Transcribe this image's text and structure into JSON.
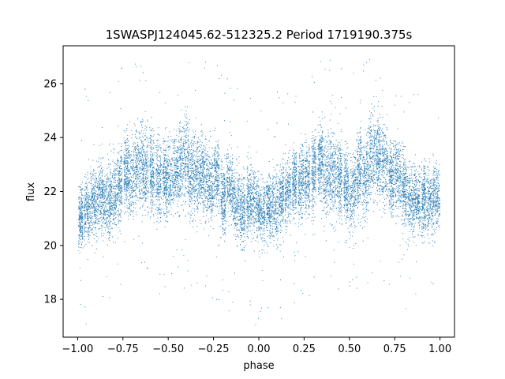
{
  "chart_data": {
    "type": "scatter",
    "title": "1SWASPJ124045.62-512325.2 Period 1719190.375s",
    "xlabel": "phase",
    "ylabel": "flux",
    "xlim": [
      -1.08,
      1.08
    ],
    "ylim": [
      16.6,
      27.4
    ],
    "xticks": [
      -1.0,
      -0.75,
      -0.5,
      -0.25,
      0.0,
      0.25,
      0.5,
      0.75,
      1.0
    ],
    "xtick_labels": [
      "−1.00",
      "−0.75",
      "−0.50",
      "−0.25",
      "0.00",
      "0.25",
      "0.50",
      "0.75",
      "1.00"
    ],
    "yticks": [
      18,
      20,
      22,
      24,
      26
    ],
    "ytick_labels": [
      "18",
      "20",
      "22",
      "24",
      "26"
    ],
    "grid": false,
    "marker_color": "#1f77b4",
    "phase_range": [
      -1.0,
      1.0
    ],
    "flux_bounds": [
      17.0,
      27.0
    ],
    "envelope": {
      "phase": [
        0.0,
        0.05,
        0.1,
        0.15,
        0.2,
        0.25,
        0.3,
        0.35,
        0.4,
        0.45,
        0.5
      ],
      "median_flux": [
        21.3,
        21.6,
        21.4,
        21.9,
        22.1,
        22.4,
        22.6,
        22.9,
        23.0,
        22.5,
        22.0
      ],
      "spread": [
        1.0,
        1.1,
        1.2,
        1.1,
        1.2,
        1.2,
        1.3,
        1.4,
        1.5,
        1.3,
        1.2
      ]
    },
    "series": [
      {
        "points_per_column": 240
      }
    ]
  }
}
